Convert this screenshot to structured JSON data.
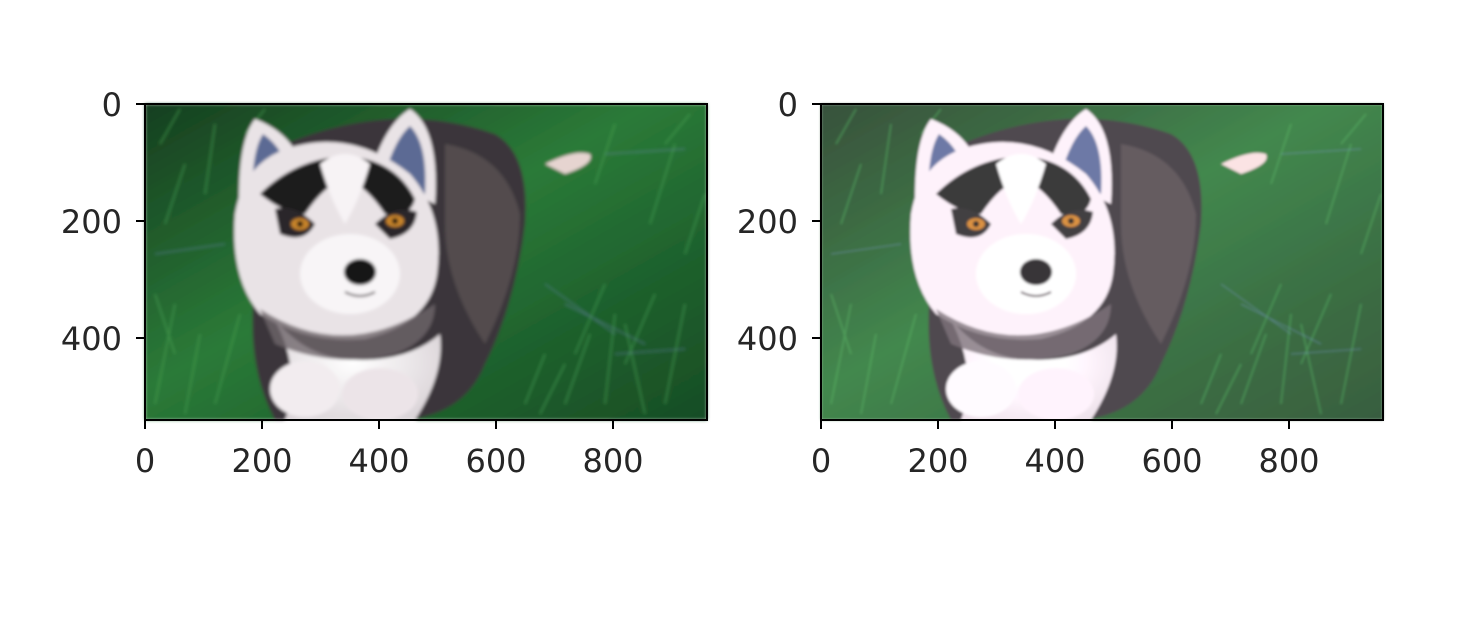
{
  "figure": {
    "panels": [
      {
        "id": "original",
        "image_description": "husky puppy lying on green grass",
        "x_ticks": [
          "0",
          "200",
          "400",
          "600",
          "800"
        ],
        "y_ticks": [
          "0",
          "200",
          "400"
        ],
        "x_data_range": [
          0,
          960
        ],
        "y_data_range": [
          0,
          540
        ],
        "brightness": "normal"
      },
      {
        "id": "processed",
        "image_description": "husky puppy lying on green grass (brighter, smoothed)",
        "x_ticks": [
          "0",
          "200",
          "400",
          "600",
          "800"
        ],
        "y_ticks": [
          "0",
          "200",
          "400"
        ],
        "x_data_range": [
          0,
          960
        ],
        "y_data_range": [
          0,
          540
        ],
        "brightness": "brightened"
      }
    ],
    "colors": {
      "grass_dark": "#0f3b1e",
      "grass_mid": "#1f6b33",
      "grass_light": "#3f9a4a",
      "fur_dark": "#2a2a2e",
      "fur_gray": "#7c7377",
      "fur_white": "#f4f0f2",
      "eye": "#c8842a",
      "axis": "#000000"
    }
  }
}
